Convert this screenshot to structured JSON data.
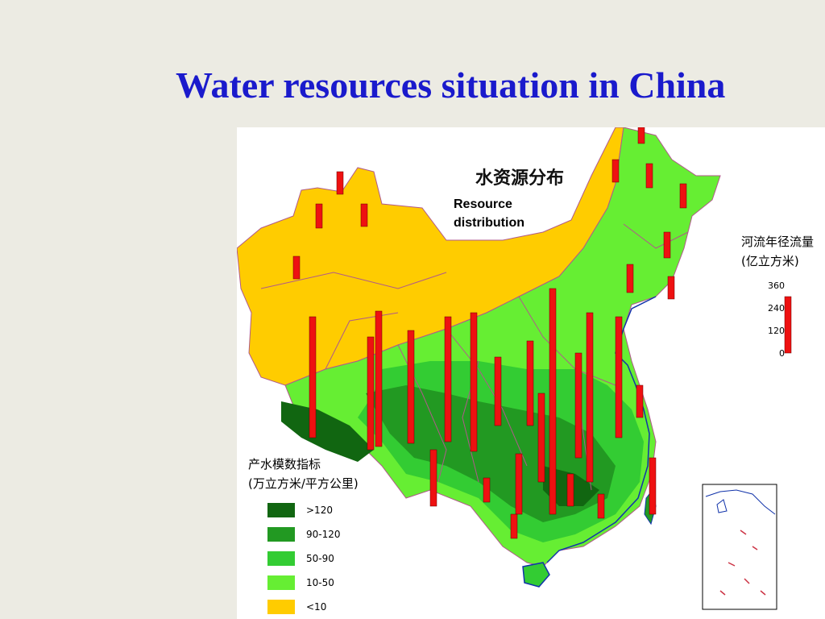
{
  "slide": {
    "title": "Water resources situation in China"
  },
  "map": {
    "title_cn": "水资源分布",
    "subtitle": "Resource distribution",
    "colors": {
      "dry": "#ffcc00",
      "medium_light": "#66ee33",
      "medium": "#33cc33",
      "dark_medium": "#229922",
      "dark": "#116611",
      "bar": "#ee1111",
      "boundary": "#b05a8a",
      "coast": "#1133aa"
    }
  },
  "flow_legend": {
    "title_line1": "河流年径流量",
    "title_line2": "(亿立方米)",
    "ticks": [
      "360",
      "240",
      "120",
      "0"
    ]
  },
  "water_index_legend": {
    "title_line1": "产水模数指标",
    "title_line2": "(万立方米/平方公里)",
    "items": [
      {
        "label": ">120",
        "color": "#116611"
      },
      {
        "label": "90-120",
        "color": "#229922"
      },
      {
        "label": "50-90",
        "color": "#33cc33"
      },
      {
        "label": "10-50",
        "color": "#66ee33"
      },
      {
        "label": "<10",
        "color": "#ffcc00"
      }
    ]
  }
}
